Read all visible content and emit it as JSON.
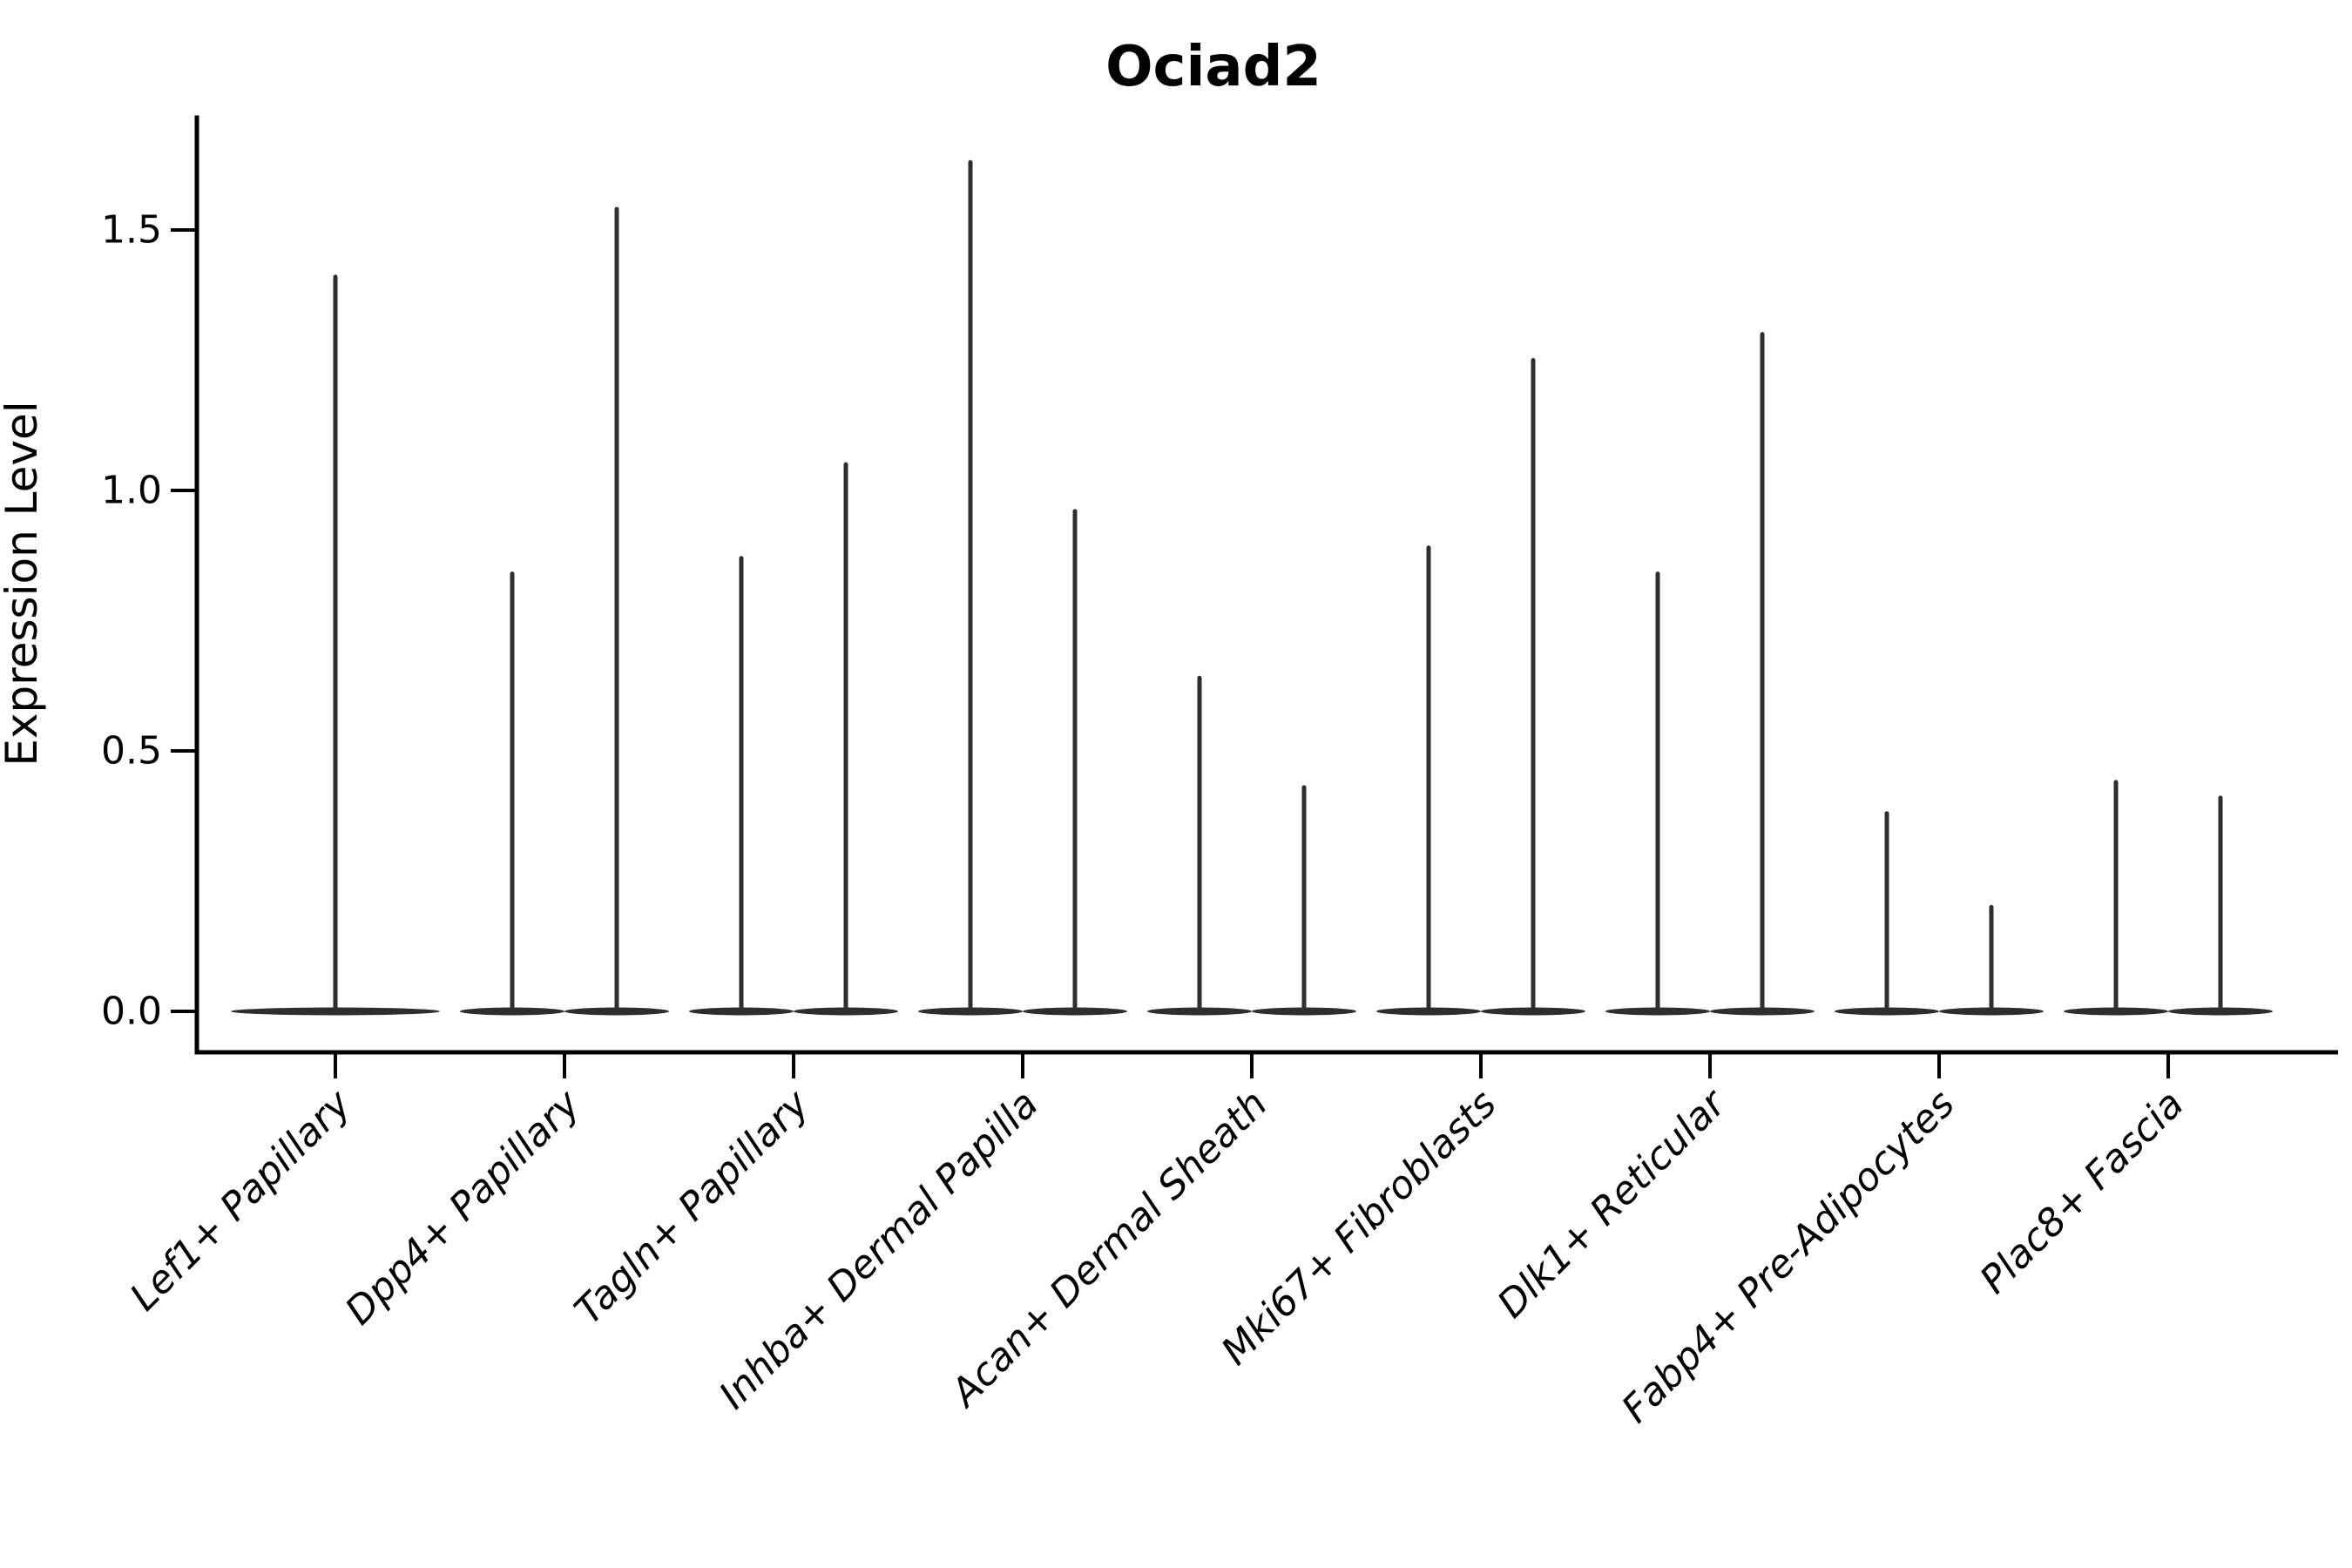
{
  "title": "Ociad2",
  "y_axis": {
    "label": "Expression Level",
    "tick_labels": [
      "0.0",
      "0.5",
      "1.0",
      "1.5"
    ],
    "tick_values": [
      0.0,
      0.5,
      1.0,
      1.5
    ]
  },
  "x_axis": {
    "categories": [
      "Lef1+ Papillary",
      "Dpp4+ Papillary",
      "Tagln+ Papillary",
      "Inhba+ Dermal Papilla",
      "Acan+ Dermal Sheath",
      "Mki67+ Fibroblasts",
      "Dlk1+ Reticular",
      "Fabp4+ Pre-Adipocytes",
      "Plac8+ Fascia"
    ]
  },
  "chart_data": {
    "type": "violin",
    "title": "Ociad2",
    "xlabel": "",
    "ylabel": "Expression Level",
    "ylim": [
      0,
      1.72
    ],
    "yticks": [
      0.0,
      0.5,
      1.0,
      1.5
    ],
    "ytick_labels": [
      "0.0",
      "0.5",
      "1.0",
      "1.5"
    ],
    "grid": false,
    "legend": false,
    "categories": [
      "Lef1+ Papillary",
      "Dpp4+ Papillary",
      "Tagln+ Papillary",
      "Inhba+ Dermal Papilla",
      "Acan+ Dermal Sheath",
      "Mki67+ Fibroblasts",
      "Dlk1+ Reticular",
      "Fabp4+ Pre-Adipocytes",
      "Plac8+ Fascia"
    ],
    "violins": [
      {
        "category": "Lef1+ Papillary",
        "group_maxima": [
          1.41
        ],
        "bulk_value": 0.0
      },
      {
        "category": "Dpp4+ Papillary",
        "group_maxima": [
          0.84,
          1.54
        ],
        "bulk_value": 0.0
      },
      {
        "category": "Tagln+ Papillary",
        "group_maxima": [
          0.87,
          1.05
        ],
        "bulk_value": 0.0
      },
      {
        "category": "Inhba+ Dermal Papilla",
        "group_maxima": [
          1.63,
          0.96
        ],
        "bulk_value": 0.0
      },
      {
        "category": "Acan+ Dermal Sheath",
        "group_maxima": [
          0.64,
          0.43
        ],
        "bulk_value": 0.0
      },
      {
        "category": "Mki67+ Fibroblasts",
        "group_maxima": [
          0.89,
          1.25
        ],
        "bulk_value": 0.0
      },
      {
        "category": "Dlk1+ Reticular",
        "group_maxima": [
          0.84,
          1.3
        ],
        "bulk_value": 0.0
      },
      {
        "category": "Fabp4+ Pre-Adipocytes",
        "group_maxima": [
          0.38,
          0.2
        ],
        "bulk_value": 0.0
      },
      {
        "category": "Plac8+ Fascia",
        "group_maxima": [
          0.44,
          0.41
        ],
        "bulk_value": 0.0
      }
    ],
    "style": {
      "violin_color": "#2e2e2e",
      "axis_color": "#000000",
      "background_color": "#ffffff",
      "x_label_style": "italic",
      "x_label_rotation_deg": 45,
      "title_bold": true
    }
  }
}
